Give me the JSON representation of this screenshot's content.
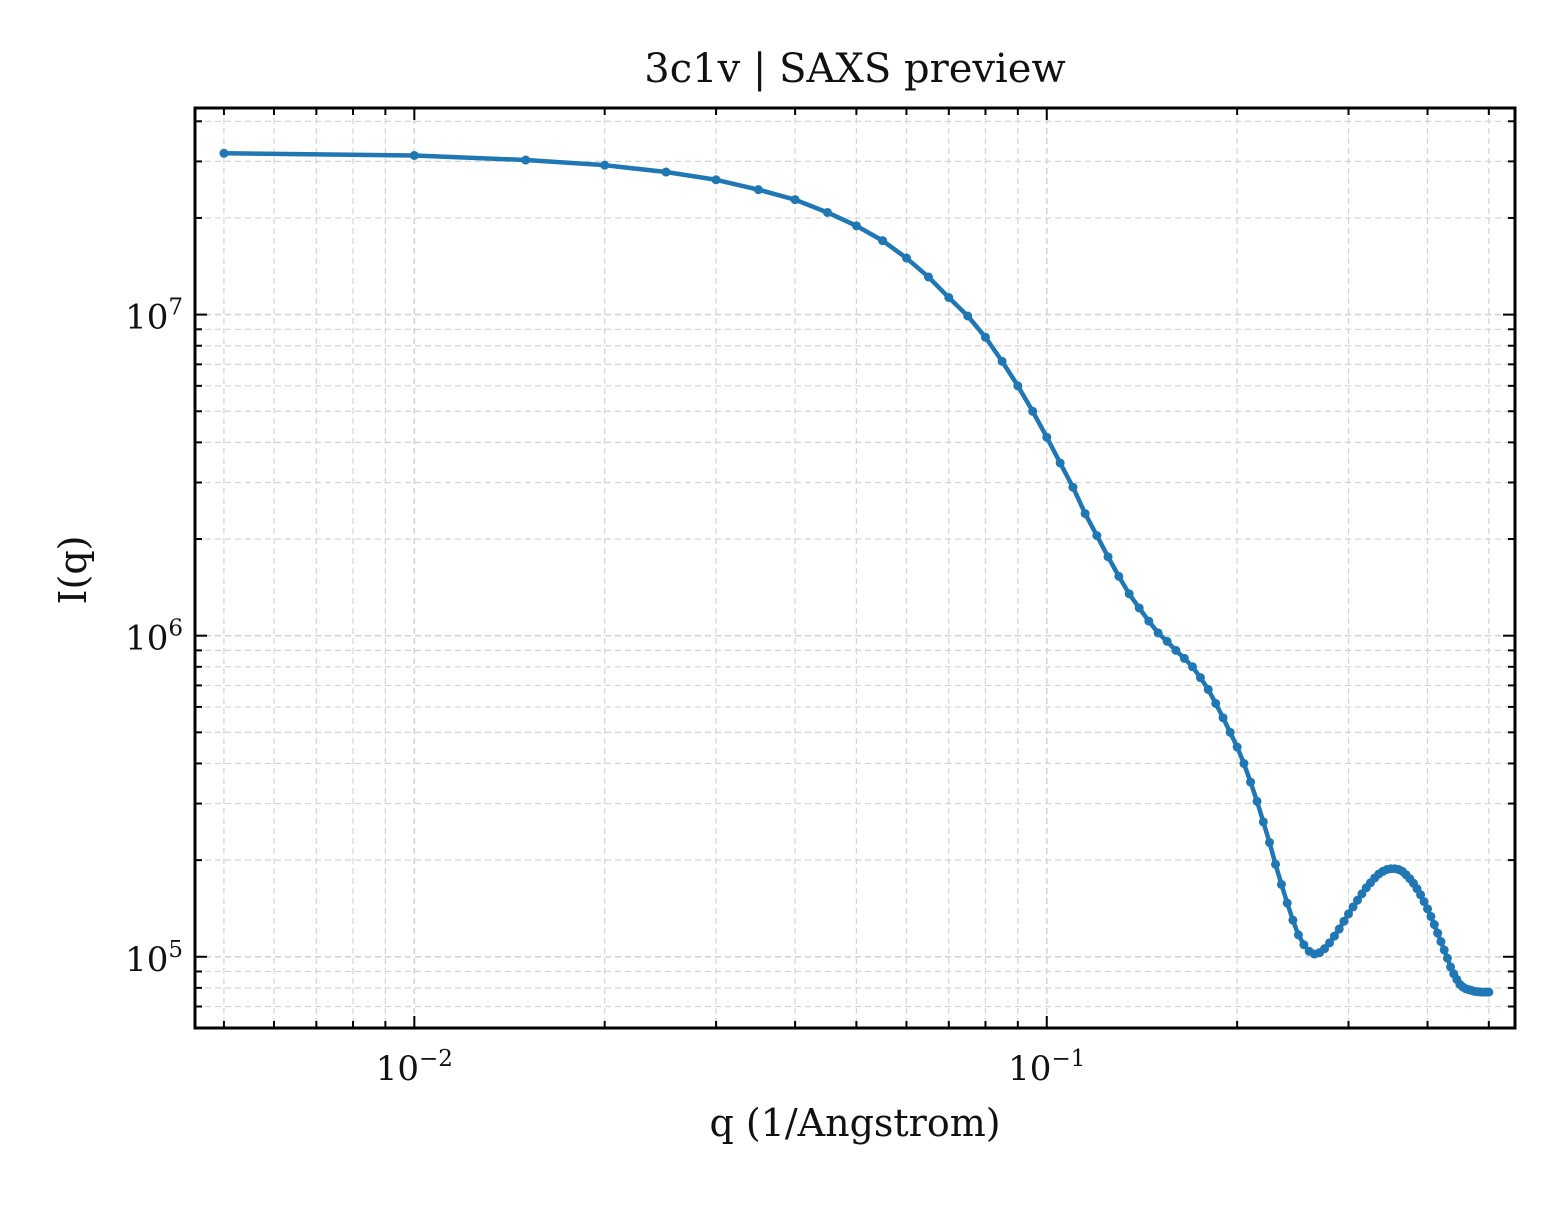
{
  "chart_data": {
    "type": "line",
    "title": "3c1v | SAXS preview",
    "xlabel": "q (1/Angstrom)",
    "ylabel": "I(q)",
    "xscale": "log",
    "yscale": "log",
    "xlim": [
      0.0045,
      0.55
    ],
    "ylim": [
      60000,
      44000000
    ],
    "grid": true,
    "legend": "none",
    "x_ticks": [
      {
        "value": 0.01,
        "base": "10",
        "exp": "−2"
      },
      {
        "value": 0.1,
        "base": "10",
        "exp": "−1"
      }
    ],
    "y_ticks": [
      {
        "value": 100000,
        "base": "10",
        "exp": "5"
      },
      {
        "value": 1000000,
        "base": "10",
        "exp": "6"
      },
      {
        "value": 10000000,
        "base": "10",
        "exp": "7"
      }
    ],
    "series": [
      {
        "color": "#1f77b4",
        "x": [
          0.005,
          0.01,
          0.015,
          0.02,
          0.025,
          0.03,
          0.035,
          0.04,
          0.045,
          0.05,
          0.055,
          0.06,
          0.065,
          0.07,
          0.075,
          0.08,
          0.085,
          0.09,
          0.095,
          0.1,
          0.105,
          0.11,
          0.115,
          0.12,
          0.125,
          0.13,
          0.135,
          0.14,
          0.145,
          0.15,
          0.155,
          0.16,
          0.165,
          0.17,
          0.175,
          0.18,
          0.185,
          0.19,
          0.195,
          0.2,
          0.205,
          0.21,
          0.215,
          0.22,
          0.225,
          0.23,
          0.235,
          0.24,
          0.245,
          0.25,
          0.255,
          0.26,
          0.265,
          0.27,
          0.275,
          0.28,
          0.285,
          0.29,
          0.295,
          0.3,
          0.305,
          0.31,
          0.315,
          0.32,
          0.325,
          0.33,
          0.335,
          0.34,
          0.345,
          0.35,
          0.355,
          0.36,
          0.365,
          0.37,
          0.375,
          0.38,
          0.385,
          0.39,
          0.395,
          0.4,
          0.405,
          0.41,
          0.415,
          0.42,
          0.425,
          0.43,
          0.435,
          0.44,
          0.445,
          0.45,
          0.455,
          0.46,
          0.465,
          0.47,
          0.475,
          0.48,
          0.485,
          0.49,
          0.495,
          0.5
        ],
        "y": [
          31800000,
          31300000,
          30300000,
          29200000,
          27800000,
          26300000,
          24500000,
          22800000,
          20800000,
          18900000,
          17000000,
          15000000,
          13100000,
          11300000,
          9900000,
          8500000,
          7150000,
          6000000,
          5000000,
          4150000,
          3450000,
          2900000,
          2400000,
          2050000,
          1760000,
          1530000,
          1350000,
          1220000,
          1110000,
          1020000,
          960000,
          900000,
          850000,
          800000,
          740000,
          680000,
          615000,
          555000,
          500000,
          450000,
          400000,
          350000,
          305000,
          263000,
          227000,
          194000,
          168000,
          147000,
          130000,
          117000,
          109000,
          104000,
          102000,
          103000,
          106000,
          110500,
          116000,
          122000,
          129000,
          136000,
          143000,
          150000,
          157000,
          164000,
          170000,
          176000,
          181000,
          184500,
          187000,
          188000,
          188000,
          187000,
          184500,
          180000,
          175000,
          169500,
          163000,
          156000,
          148500,
          141000,
          133500,
          126000,
          118500,
          111500,
          105000,
          99000,
          93000,
          88500,
          85000,
          82000,
          80500,
          79500,
          79000,
          78500,
          78000,
          77800,
          77700,
          77600,
          77600,
          77600
        ]
      }
    ]
  }
}
